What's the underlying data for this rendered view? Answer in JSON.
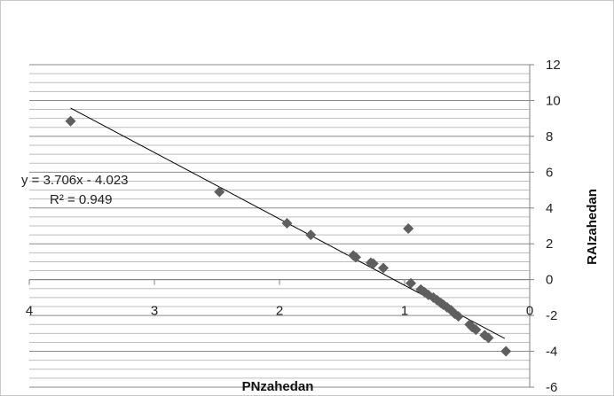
{
  "chart_data": {
    "type": "scatter",
    "title": "",
    "xlabel": "PNzahedan",
    "ylabel": "RAIzahedan",
    "x_reversed": true,
    "xlim": [
      0,
      4
    ],
    "ylim": [
      -6,
      12
    ],
    "x_ticks": [
      "4",
      "3",
      "2",
      "1",
      "0"
    ],
    "y_ticks": [
      "12",
      "10",
      "8",
      "6",
      "4",
      "2",
      "0",
      "-2",
      "-4",
      "-6"
    ],
    "y_axis_side": "right",
    "gridlines": "horizontal, dense",
    "marker": "diamond",
    "marker_color": "#5f5f5f",
    "points": [
      {
        "x": 3.67,
        "y": 8.85
      },
      {
        "x": 2.48,
        "y": 4.9
      },
      {
        "x": 1.94,
        "y": 3.15
      },
      {
        "x": 1.75,
        "y": 2.5
      },
      {
        "x": 1.41,
        "y": 1.35
      },
      {
        "x": 1.39,
        "y": 1.25
      },
      {
        "x": 1.27,
        "y": 0.95
      },
      {
        "x": 1.25,
        "y": 0.9
      },
      {
        "x": 1.17,
        "y": 0.65
      },
      {
        "x": 0.97,
        "y": 2.85
      },
      {
        "x": 0.95,
        "y": -0.2
      },
      {
        "x": 0.87,
        "y": -0.55
      },
      {
        "x": 0.84,
        "y": -0.7
      },
      {
        "x": 0.81,
        "y": -0.85
      },
      {
        "x": 0.77,
        "y": -1.0
      },
      {
        "x": 0.74,
        "y": -1.15
      },
      {
        "x": 0.71,
        "y": -1.3
      },
      {
        "x": 0.69,
        "y": -1.4
      },
      {
        "x": 0.66,
        "y": -1.55
      },
      {
        "x": 0.63,
        "y": -1.7
      },
      {
        "x": 0.6,
        "y": -1.9
      },
      {
        "x": 0.57,
        "y": -2.05
      },
      {
        "x": 0.48,
        "y": -2.5
      },
      {
        "x": 0.46,
        "y": -2.65
      },
      {
        "x": 0.43,
        "y": -2.8
      },
      {
        "x": 0.36,
        "y": -3.1
      },
      {
        "x": 0.33,
        "y": -3.25
      },
      {
        "x": 0.19,
        "y": -4.0
      }
    ],
    "trendline": {
      "type": "linear",
      "slope": 3.706,
      "intercept": -4.023,
      "x_range": [
        0.2,
        3.67
      ],
      "equation_label": "y = 3.706x - 4.023",
      "r2_label": "R² = 0.949"
    }
  }
}
